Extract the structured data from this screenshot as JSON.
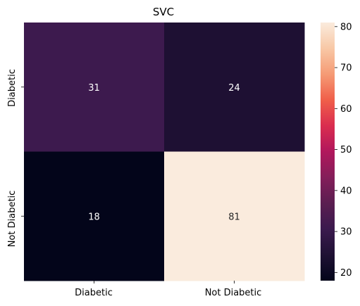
{
  "chart_data": {
    "type": "heatmap",
    "title": "SVC",
    "xlabel": "",
    "ylabel": "",
    "x_categories": [
      "Diabetic",
      "Not Diabetic"
    ],
    "y_categories": [
      "Diabetic",
      "Not Diabetic"
    ],
    "values": [
      [
        31,
        24
      ],
      [
        18,
        81
      ]
    ],
    "colorbar": {
      "min": 18,
      "max": 81,
      "ticks": [
        "20",
        "30",
        "40",
        "50",
        "60",
        "70",
        "80"
      ],
      "colormap": "rocket",
      "placement": "right"
    },
    "grid": false,
    "legend": "none"
  }
}
